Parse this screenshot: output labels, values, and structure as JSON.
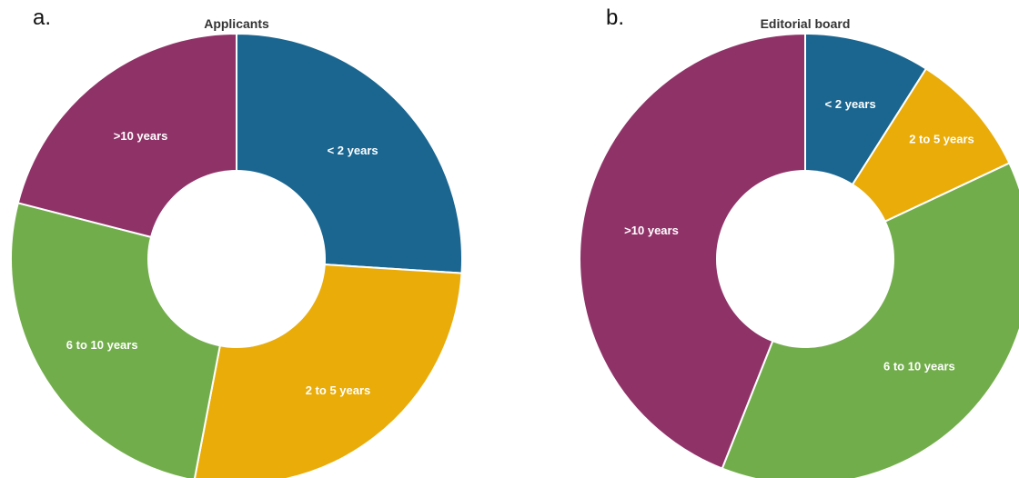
{
  "panels": {
    "a_label": "a.",
    "b_label": "b."
  },
  "colors": {
    "lt2": "#1a6690",
    "y2to5": "#e9ac09",
    "y6to10": "#72ad4b",
    "gt10": "#8f3268",
    "separator": "#ffffff",
    "hole": "#ffffff"
  },
  "chart_data": [
    {
      "type": "pie",
      "donut": true,
      "title": "Applicants",
      "legend": "none",
      "slices": [
        {
          "label": "< 2 years",
          "value": 26,
          "color_key": "lt2"
        },
        {
          "label": "2 to 5 years",
          "value": 27,
          "color_key": "y2to5"
        },
        {
          "label": "6 to 10 years",
          "value": 26,
          "color_key": "y6to10"
        },
        {
          "label": ">10 years",
          "value": 21,
          "color_key": "gt10"
        }
      ]
    },
    {
      "type": "pie",
      "donut": true,
      "title": "Editorial board",
      "legend": "none",
      "slices": [
        {
          "label": "< 2 years",
          "value": 9,
          "color_key": "lt2"
        },
        {
          "label": "2 to 5 years",
          "value": 9,
          "color_key": "y2to5"
        },
        {
          "label": "6 to 10 years",
          "value": 38,
          "color_key": "y6to10"
        },
        {
          "label": ">10 years",
          "value": 44,
          "color_key": "gt10"
        }
      ]
    }
  ]
}
